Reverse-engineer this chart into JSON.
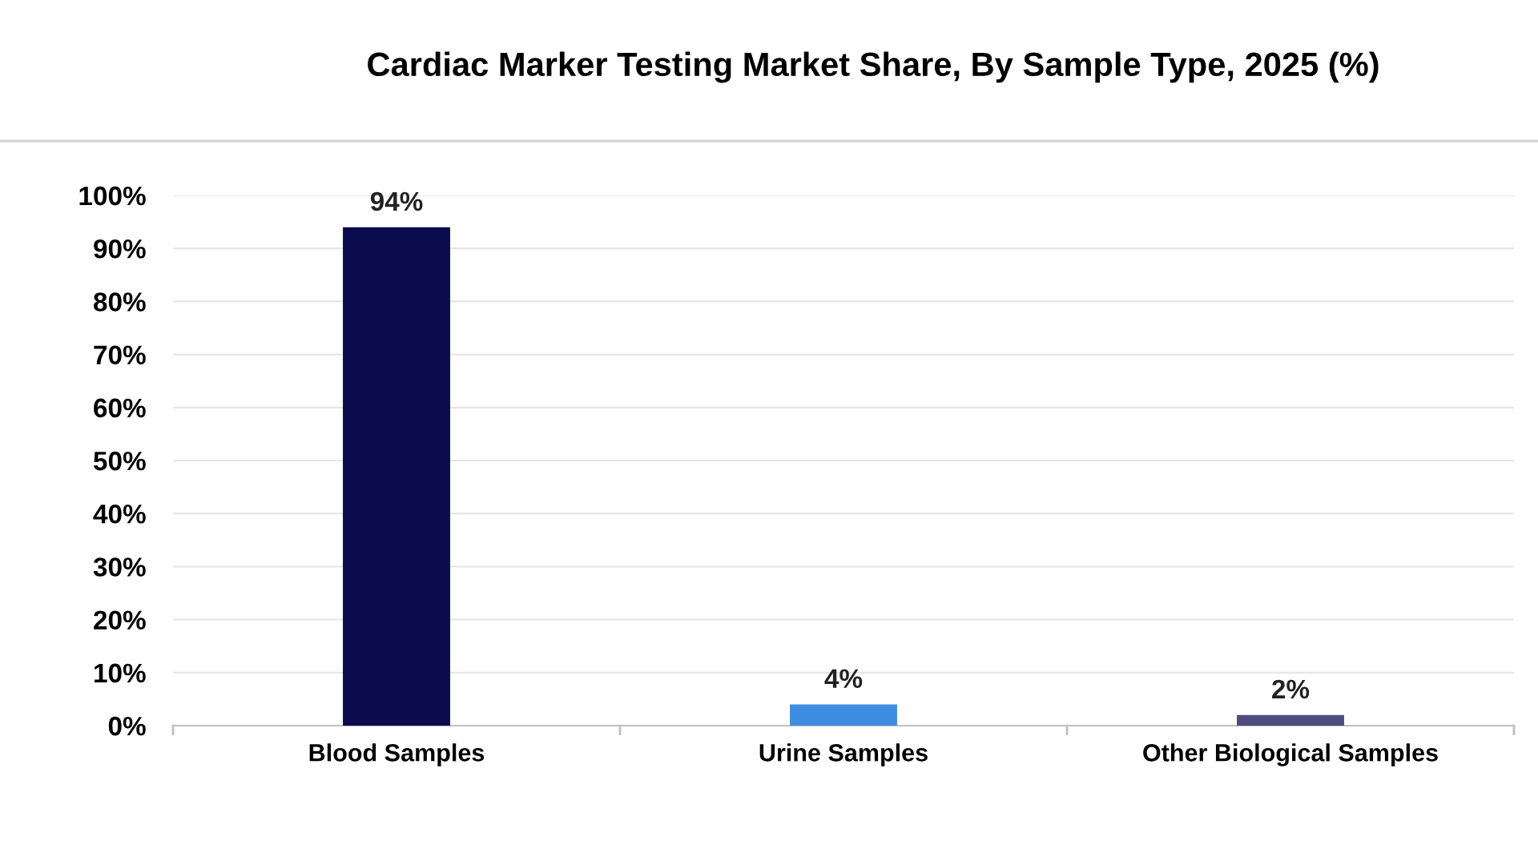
{
  "chart_data": {
    "type": "bar",
    "title": "Cardiac Marker Testing Market Share, By Sample Type, 2025 (%)",
    "categories": [
      "Blood Samples",
      "Urine Samples",
      "Other Biological Samples"
    ],
    "values": [
      94,
      4,
      2
    ],
    "colors": [
      "#0b0c4d",
      "#3f8de0",
      "#4b4b7d"
    ],
    "value_labels": [
      "94%",
      "4%",
      "2%"
    ],
    "ylim": [
      0,
      100
    ],
    "yticks": [
      {
        "value": 0,
        "label": "0%"
      },
      {
        "value": 10,
        "label": "10%"
      },
      {
        "value": 20,
        "label": "20%"
      },
      {
        "value": 30,
        "label": "30%"
      },
      {
        "value": 40,
        "label": "40%"
      },
      {
        "value": 50,
        "label": "50%"
      },
      {
        "value": 60,
        "label": "60%"
      },
      {
        "value": 70,
        "label": "70%"
      },
      {
        "value": 80,
        "label": "80%"
      },
      {
        "value": 90,
        "label": "90%"
      },
      {
        "value": 100,
        "label": "100%"
      }
    ],
    "grid": "y",
    "legend": false
  }
}
